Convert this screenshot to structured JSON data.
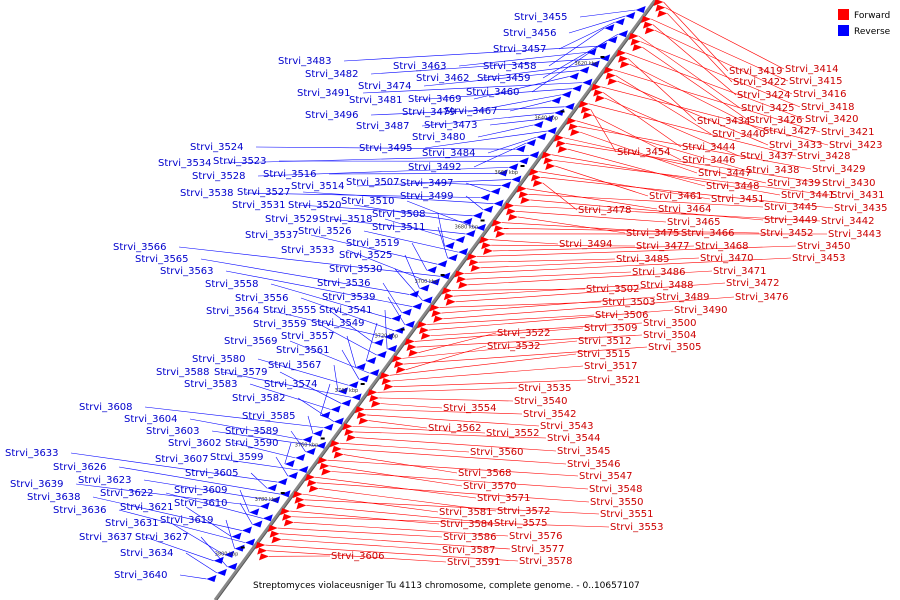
{
  "legend": [
    {
      "label": "Forward",
      "color": "#ff0000"
    },
    {
      "label": "Reverse",
      "color": "#0000ff"
    }
  ],
  "caption": "Streptomyces violaceusniger Tu 4113 chromosome, complete genome. - 0..10657107",
  "backbone_color": "#888888",
  "ticks": [
    "3620 kbp",
    "3640 kbp",
    "3660 kbp",
    "3680 kbp",
    "3700 kbp",
    "3720 kbp",
    "3740 kbp",
    "3760 kbp",
    "3780 kbp",
    "3800 kbp"
  ],
  "reverse_genes": [
    "Strvi_3455",
    "Strvi_3456",
    "Strvi_3457",
    "Strvi_3458",
    "Strvi_3459",
    "Strvi_3460",
    "Strvi_3483",
    "Strvi_3463",
    "Strvi_3482",
    "Strvi_3462",
    "Strvi_3474",
    "Strvi_3469",
    "Strvi_3491",
    "Strvi_3481",
    "Strvi_3479",
    "Strvi_3467",
    "Strvi_3496",
    "Strvi_3487",
    "Strvi_3473",
    "Strvi_3480",
    "Strvi_3495",
    "Strvi_3484",
    "Strvi_3492",
    "Strvi_3524",
    "Strvi_3534",
    "Strvi_3523",
    "Strvi_3528",
    "Strvi_3516",
    "Strvi_3514",
    "Strvi_3507",
    "Strvi_3497",
    "Strvi_3538",
    "Strvi_3527",
    "Strvi_3499",
    "Strvi_3531",
    "Strvi_3520",
    "Strvi_3510",
    "Strvi_3529",
    "Strvi_3518",
    "Strvi_3508",
    "Strvi_3526",
    "Strvi_3511",
    "Strvi_3537",
    "Strvi_3519",
    "Strvi_3566",
    "Strvi_3533",
    "Strvi_3525",
    "Strvi_3565",
    "Strvi_3530",
    "Strvi_3563",
    "Strvi_3536",
    "Strvi_3558",
    "Strvi_3539",
    "Strvi_3556",
    "Strvi_3564",
    "Strvi_3555",
    "Strvi_3541",
    "Strvi_3559",
    "Strvi_3549",
    "Strvi_3557",
    "Strvi_3569",
    "Strvi_3561",
    "Strvi_3580",
    "Strvi_3567",
    "Strvi_3588",
    "Strvi_3579",
    "Strvi_3583",
    "Strvi_3574",
    "Strvi_3582",
    "Strvi_3608",
    "Strvi_3585",
    "Strvi_3604",
    "Strvi_3603",
    "Strvi_3589",
    "Strvi_3602",
    "Strvi_3590",
    "Strvi_3607",
    "Strvi_3599",
    "Strvi_3633",
    "Strvi_3605",
    "Strvi_3626",
    "Strvi_3623",
    "Strvi_3639",
    "Strvi_3609",
    "Strvi_3622",
    "Strvi_3610",
    "Strvi_3638",
    "Strvi_3621",
    "Strvi_3636",
    "Strvi_3619",
    "Strvi_3631",
    "Strvi_3637",
    "Strvi_3627",
    "Strvi_3634",
    "Strvi_3640"
  ],
  "forward_genes": [
    "Strvi_3419",
    "Strvi_3414",
    "Strvi_3422",
    "Strvi_3415",
    "Strvi_3424",
    "Strvi_3416",
    "Strvi_3425",
    "Strvi_3418",
    "Strvi_3426",
    "Strvi_3420",
    "Strvi_3434",
    "Strvi_3427",
    "Strvi_3421",
    "Strvi_3440",
    "Strvi_3433",
    "Strvi_3423",
    "Strvi_3444",
    "Strvi_3437",
    "Strvi_3428",
    "Strvi_3454",
    "Strvi_3446",
    "Strvi_3438",
    "Strvi_3429",
    "Strvi_3447",
    "Strvi_3439",
    "Strvi_3430",
    "Strvi_3448",
    "Strvi_3441",
    "Strvi_3431",
    "Strvi_3461",
    "Strvi_3451",
    "Strvi_3435",
    "Strvi_3478",
    "Strvi_3464",
    "Strvi_3445",
    "Strvi_3449",
    "Strvi_3442",
    "Strvi_3465",
    "Strvi_3475",
    "Strvi_3466",
    "Strvi_3452",
    "Strvi_3443",
    "Strvi_3494",
    "Strvi_3477",
    "Strvi_3468",
    "Strvi_3450",
    "Strvi_3485",
    "Strvi_3470",
    "Strvi_3453",
    "Strvi_3486",
    "Strvi_3471",
    "Strvi_3502",
    "Strvi_3488",
    "Strvi_3472",
    "Strvi_3503",
    "Strvi_3489",
    "Strvi_3476",
    "Strvi_3506",
    "Strvi_3490",
    "Strvi_3500",
    "Strvi_3509",
    "Strvi_3504",
    "Strvi_3522",
    "Strvi_3512",
    "Strvi_3505",
    "Strvi_3532",
    "Strvi_3515",
    "Strvi_3517",
    "Strvi_3521",
    "Strvi_3535",
    "Strvi_3540",
    "Strvi_3554",
    "Strvi_3542",
    "Strvi_3543",
    "Strvi_3562",
    "Strvi_3552",
    "Strvi_3544",
    "Strvi_3545",
    "Strvi_3560",
    "Strvi_3546",
    "Strvi_3568",
    "Strvi_3547",
    "Strvi_3570",
    "Strvi_3548",
    "Strvi_3571",
    "Strvi_3550",
    "Strvi_3572",
    "Strvi_3581",
    "Strvi_3551",
    "Strvi_3575",
    "Strvi_3584",
    "Strvi_3553",
    "Strvi_3576",
    "Strvi_3586",
    "Strvi_3577",
    "Strvi_3587",
    "Strvi_3578",
    "Strvi_3591",
    "Strvi_3606"
  ]
}
